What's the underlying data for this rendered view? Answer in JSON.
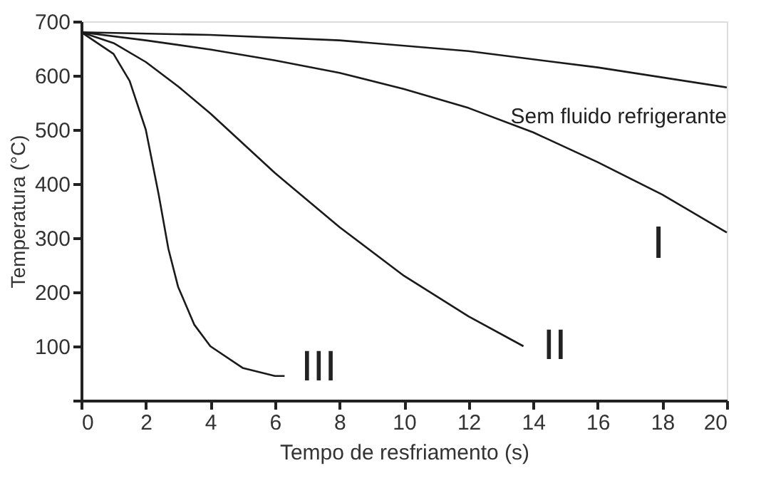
{
  "chart_data": {
    "type": "line",
    "xlabel": "Tempo de resfriamento (s)",
    "ylabel": "Temperatura    (°C)",
    "xlim": [
      0,
      20
    ],
    "xticks": [
      0,
      2,
      4,
      6,
      8,
      10,
      12,
      14,
      16,
      18,
      20
    ],
    "ylim": [
      0,
      700
    ],
    "yticks": [
      {
        "value": 0,
        "label": null
      },
      100,
      200,
      300,
      400,
      500,
      600,
      700
    ],
    "grid": false,
    "marker": "none",
    "line_style": "solid",
    "series": [
      {
        "name": "Sem fluido refrigerante",
        "color": "#1a1a1a",
        "x": [
          0,
          4,
          8,
          12,
          16,
          20
        ],
        "values": [
          680,
          675,
          665,
          645,
          615,
          578
        ]
      },
      {
        "name": "I",
        "color": "#1a1a1a",
        "x": [
          0,
          2,
          4,
          6,
          8,
          10,
          12,
          14,
          16,
          18,
          20
        ],
        "values": [
          680,
          665,
          648,
          628,
          605,
          575,
          540,
          495,
          440,
          380,
          310
        ]
      },
      {
        "name": "II",
        "color": "#1a1a1a",
        "x": [
          0,
          1,
          2,
          3,
          4,
          6,
          8,
          10,
          12,
          13.7
        ],
        "values": [
          680,
          660,
          625,
          580,
          530,
          420,
          320,
          230,
          155,
          100
        ]
      },
      {
        "name": "III",
        "color": "#1a1a1a",
        "x": [
          0,
          1,
          1.5,
          2,
          2.4,
          2.7,
          3,
          3.5,
          4,
          5,
          6,
          6.3
        ],
        "values": [
          680,
          640,
          590,
          500,
          380,
          280,
          210,
          140,
          100,
          60,
          45,
          45
        ]
      }
    ]
  }
}
